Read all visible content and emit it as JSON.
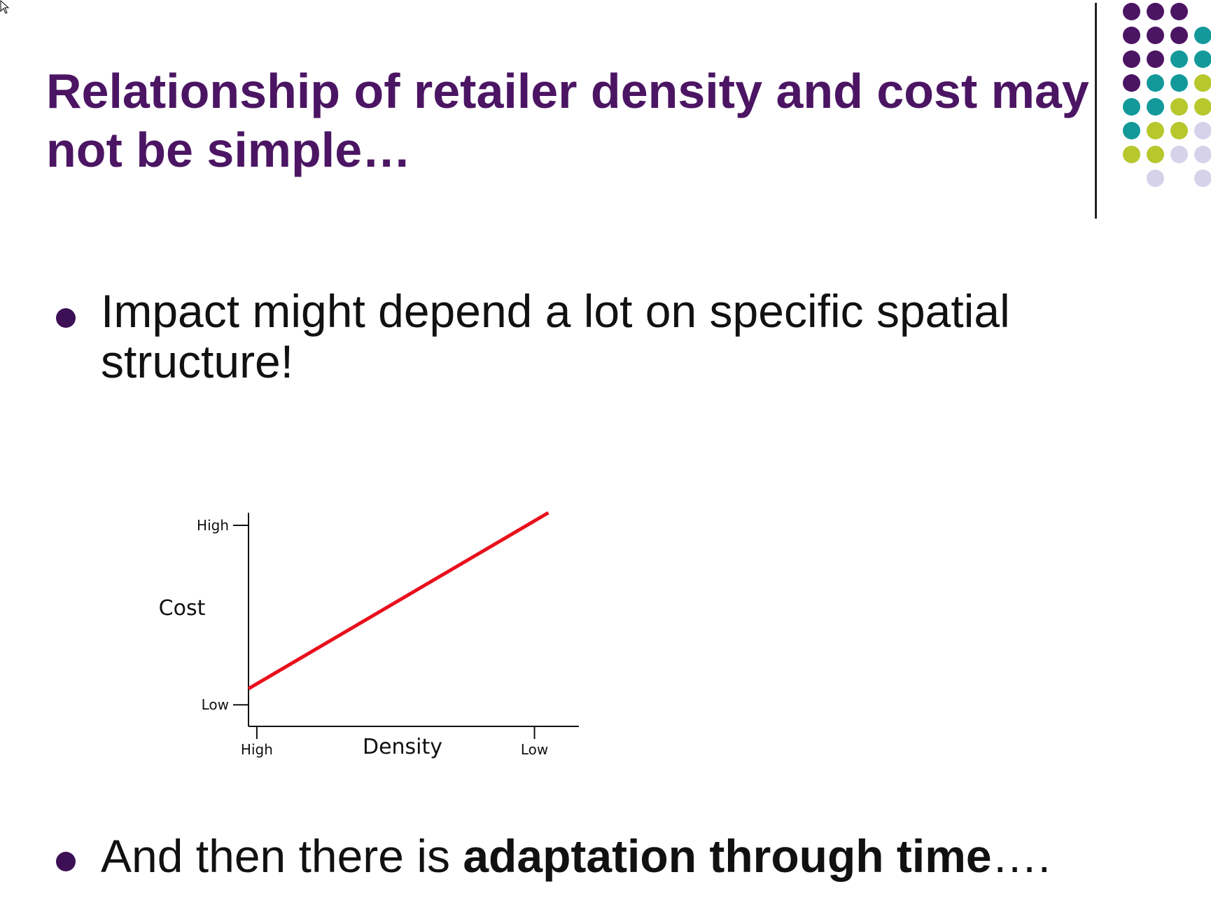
{
  "slide": {
    "title_lines": [
      "Relationship of retailer density and cost may",
      "not be simple…"
    ],
    "bullets": [
      {
        "lines": [
          "Impact might depend a lot on specific spatial",
          "structure!"
        ]
      },
      {
        "prefix": "And then there is ",
        "bold": "adaptation through time",
        "suffix": "…."
      }
    ]
  },
  "decoration": {
    "dot_colors": {
      "purple": "#4b1563",
      "teal": "#13999a",
      "lime": "#b7c72c",
      "lavender": "#d6d2ea"
    },
    "dot_grid": [
      [
        "purple",
        "purple",
        "purple",
        null
      ],
      [
        "purple",
        "purple",
        "purple",
        "teal"
      ],
      [
        "purple",
        "purple",
        "teal",
        "teal"
      ],
      [
        "purple",
        "teal",
        "teal",
        "lime"
      ],
      [
        "teal",
        "teal",
        "lime",
        "lime"
      ],
      [
        "teal",
        "lime",
        "lime",
        "lavender"
      ],
      [
        "lime",
        "lime",
        "lavender",
        "lavender"
      ],
      [
        null,
        "lavender",
        null,
        "lavender"
      ]
    ]
  },
  "chart_data": {
    "type": "line",
    "xlabel": "Density",
    "ylabel": "Cost",
    "x_ticks": [
      "High",
      "Low"
    ],
    "y_ticks": [
      "High",
      "Low"
    ],
    "x_tick_values": [
      0,
      1
    ],
    "y_tick_values": [
      1,
      0
    ],
    "series": [
      {
        "color": "#e8101c",
        "x": [
          -0.03,
          1.05
        ],
        "y": [
          0.09,
          1.07
        ]
      }
    ],
    "xlim": [
      -0.03,
      1.16
    ],
    "ylim": [
      -0.12,
      1.07
    ]
  }
}
